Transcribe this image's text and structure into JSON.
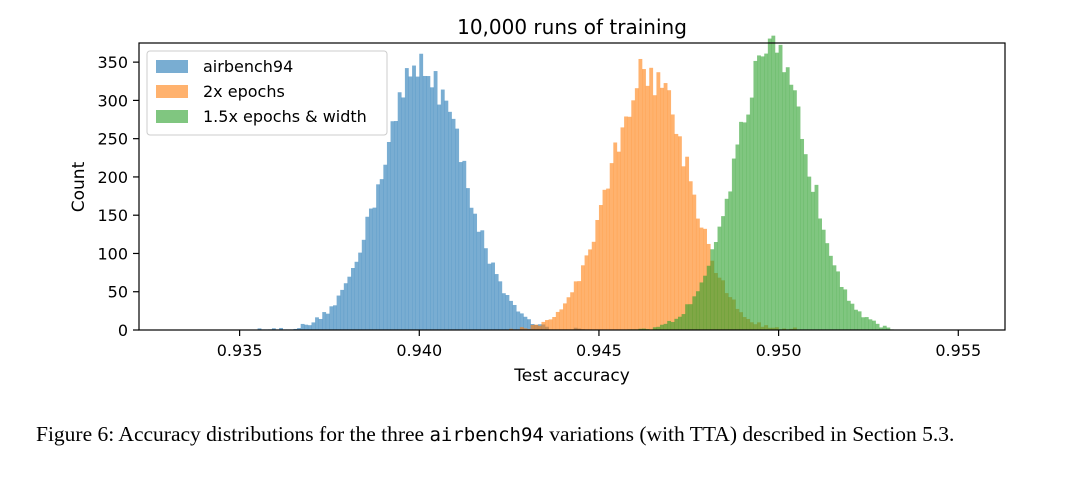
{
  "chart_data": {
    "type": "histogram",
    "title": "10,000 runs of training",
    "xlabel": "Test accuracy",
    "ylabel": "Count",
    "xlim": [
      0.9322,
      0.9563
    ],
    "ylim": [
      0,
      375
    ],
    "x_ticks": [
      "0.935",
      "0.940",
      "0.945",
      "0.950",
      "0.955"
    ],
    "x_tick_values": [
      0.935,
      0.94,
      0.945,
      0.95,
      0.955
    ],
    "y_ticks": [
      "0",
      "50",
      "100",
      "150",
      "200",
      "250",
      "300",
      "350"
    ],
    "y_tick_values": [
      0,
      50,
      100,
      150,
      200,
      250,
      300,
      350
    ],
    "bin_width": 0.0001,
    "legend_position": "upper-left",
    "series": [
      {
        "name": "airbench94",
        "color": "#1f77b4",
        "alpha": 0.6,
        "mean": 0.9401,
        "std": 0.00115,
        "peak": 345,
        "min": 0.9355,
        "max": 0.9448,
        "runs": 10000
      },
      {
        "name": "2x epochs",
        "color": "#ff7f0e",
        "alpha": 0.6,
        "mean": 0.9464,
        "std": 0.0011,
        "peak": 338,
        "min": 0.9425,
        "max": 0.9505,
        "runs": 10000
      },
      {
        "name": "1.5x epochs & width",
        "color": "#2ca02c",
        "alpha": 0.6,
        "mean": 0.9498,
        "std": 0.00105,
        "peak": 357,
        "min": 0.9458,
        "max": 0.9532,
        "runs": 10000
      }
    ]
  },
  "caption": {
    "prefix": "Figure 6:  Accuracy distributions for the three ",
    "code": "airbench94",
    "suffix": " variations (with TTA) described in Section 5.3."
  }
}
